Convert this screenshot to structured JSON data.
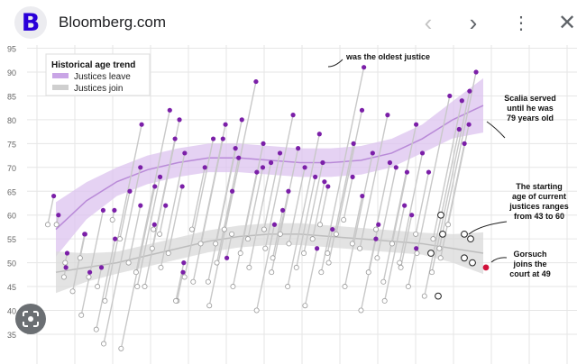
{
  "header": {
    "logo_letter": "B",
    "site": "Bloomberg.com",
    "brand_color": "#2a00d9",
    "icons": [
      "chevron-left-icon",
      "chevron-right-icon",
      "more-vert-icon",
      "close-icon"
    ]
  },
  "lens_button": {
    "icon": "lens-icon"
  },
  "chart_data": {
    "type": "line",
    "y_ticks": [
      "95",
      "90",
      "85",
      "80",
      "75",
      "70",
      "65",
      "60",
      "55",
      "50",
      "45",
      "40",
      "35"
    ],
    "ylim": [
      33,
      96
    ],
    "grid": true,
    "legend": {
      "title": "Historical age trend",
      "placement": "top-left",
      "entries": [
        {
          "label": "Justices leave",
          "color": "#c9a5e6"
        },
        {
          "label": "Justices join",
          "color": "#cfcfcf"
        }
      ]
    },
    "colors": {
      "leave_point": "#7b1fa8",
      "join_point": "#ffffff",
      "gorsuch": "#d0103a",
      "segment": "#c8c8c8"
    },
    "justices_join_leave_ages": [
      [
        58,
        64
      ],
      [
        58,
        60
      ],
      [
        50,
        52
      ],
      [
        47,
        49
      ],
      [
        44,
        56
      ],
      [
        39,
        61
      ],
      [
        51,
        56
      ],
      [
        47,
        48
      ],
      [
        45,
        49
      ],
      [
        36,
        55
      ],
      [
        42,
        79
      ],
      [
        33,
        70
      ],
      [
        59,
        61
      ],
      [
        32,
        66
      ],
      [
        55,
        65
      ],
      [
        50,
        62
      ],
      [
        45,
        68
      ],
      [
        48,
        82
      ],
      [
        45,
        80
      ],
      [
        57,
        58
      ],
      [
        53,
        76
      ],
      [
        49,
        73
      ],
      [
        56,
        62
      ],
      [
        52,
        66
      ],
      [
        42,
        48
      ],
      [
        42,
        50
      ],
      [
        47,
        76
      ],
      [
        46,
        76
      ],
      [
        57,
        70
      ],
      [
        54,
        79
      ],
      [
        41,
        88
      ],
      [
        46,
        80
      ],
      [
        50,
        72
      ],
      [
        54,
        74
      ],
      [
        57,
        65
      ],
      [
        45,
        69
      ],
      [
        56,
        51
      ],
      [
        52,
        75
      ],
      [
        49,
        71
      ],
      [
        55,
        70
      ],
      [
        40,
        58
      ],
      [
        53,
        81
      ],
      [
        57,
        73
      ],
      [
        51,
        61
      ],
      [
        48,
        65
      ],
      [
        56,
        74
      ],
      [
        54,
        70
      ],
      [
        45,
        77
      ],
      [
        49,
        68
      ],
      [
        41,
        53
      ],
      [
        52,
        71
      ],
      [
        55,
        67
      ],
      [
        48,
        91
      ],
      [
        58,
        66
      ],
      [
        50,
        75
      ],
      [
        52,
        57
      ],
      [
        56,
        82
      ],
      [
        45,
        73
      ],
      [
        59,
        68
      ],
      [
        54,
        64
      ],
      [
        40,
        55
      ],
      [
        53,
        81
      ],
      [
        48,
        58
      ],
      [
        51,
        70
      ],
      [
        57,
        71
      ],
      [
        42,
        62
      ],
      [
        46,
        79
      ],
      [
        54,
        69
      ],
      [
        49,
        60
      ],
      [
        50,
        73
      ],
      [
        45,
        53
      ],
      [
        52,
        85
      ],
      [
        56,
        69
      ],
      [
        43,
        78
      ],
      [
        55,
        84
      ],
      [
        48,
        86
      ],
      [
        51,
        75
      ],
      [
        53,
        90
      ],
      [
        58,
        79
      ]
    ],
    "current_justices_join_ages": [
      60,
      56,
      56,
      55,
      52,
      51,
      50,
      43
    ],
    "gorsuch_join_age": 49,
    "leave_trend": [
      57,
      63,
      67,
      69.5,
      71,
      72,
      72,
      71.5,
      71,
      71,
      71.5,
      73,
      76,
      80,
      83
    ],
    "join_trend": [
      48,
      49,
      50,
      51.5,
      53,
      54.5,
      55.5,
      56,
      56,
      55.5,
      55,
      54.5,
      54,
      53,
      52
    ],
    "annotations": {
      "oldest": "was the oldest justice",
      "scalia": [
        "Scalia served",
        "until he was",
        "79 years old"
      ],
      "starting": [
        "The starting",
        "age of current",
        "justices ranges",
        "from 43 to 60"
      ],
      "gorsuch": [
        "Gorsuch",
        "joins the",
        "court at 49"
      ]
    }
  }
}
